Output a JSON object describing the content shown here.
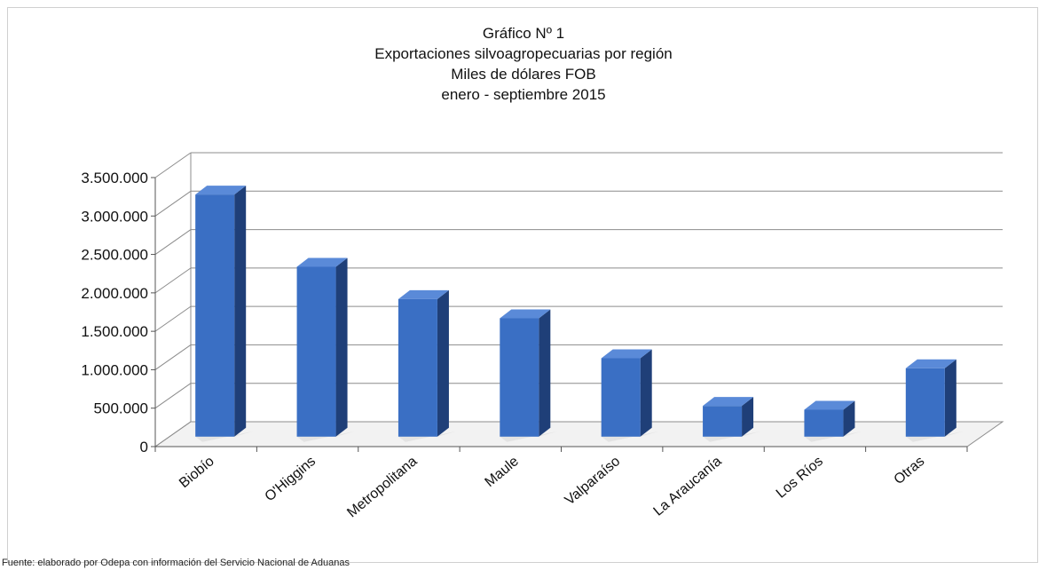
{
  "chart_data": {
    "type": "bar",
    "title_lines": [
      "Gráfico Nº 1",
      "Exportaciones silvoagropecuarias por región",
      "Miles de dólares FOB",
      "enero - septiembre 2015"
    ],
    "categories": [
      "Biobío",
      "O'Higgins",
      "Metropolitana",
      "Maule",
      "Valparaíso",
      "La Araucanía",
      "Los Ríos",
      "Otras"
    ],
    "values": [
      3150000,
      2210000,
      1790000,
      1540000,
      1020000,
      400000,
      350000,
      890000
    ],
    "ylim": [
      0,
      3500000
    ],
    "yticks": [
      0,
      500000,
      1000000,
      1500000,
      2000000,
      2500000,
      3000000,
      3500000
    ],
    "ytick_labels": [
      "0",
      "500.000",
      "1.000.000",
      "1.500.000",
      "2.000.000",
      "2.500.000",
      "3.000.000",
      "3.500.000"
    ],
    "xlabel": "",
    "ylabel": "",
    "grid": true,
    "style": "3d-column",
    "bar_color": "#3a6fc4",
    "bar_side_color": "#1f3f78",
    "bar_top_color": "#5a8ad8"
  },
  "source_note": "Fuente: elaborado por Odepa con información del Servicio Nacional de Aduanas"
}
